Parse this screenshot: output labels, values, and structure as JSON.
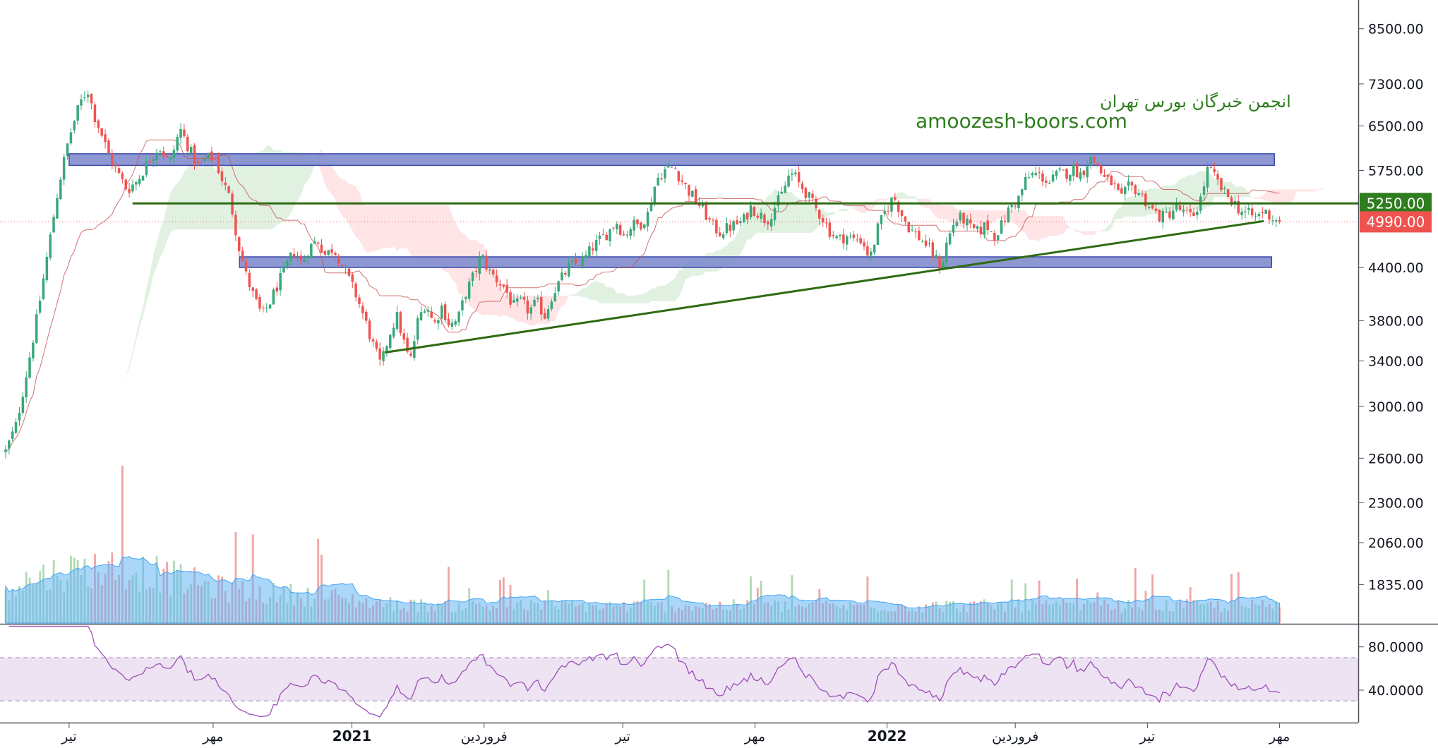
{
  "watermark": {
    "line1": "انجمن خبرگان بورس تهران",
    "line2": "amoozesh-boors.com",
    "color": "#2e7d1e"
  },
  "colors": {
    "up": "#26a69a",
    "up_candle": "#3aa87a",
    "down": "#ef5350",
    "zone_fill": "#7986cb",
    "zone_stroke": "#3949ab",
    "level_line": "#2e6b12",
    "trendline": "#2e6b12",
    "rsi_line": "#9c4fb8",
    "rsi_band": "#e9dcf0",
    "volume_ma": "#64b5f6",
    "last_price_tag": "#ef5350",
    "level_tag": "#2e7d1e"
  },
  "chart_data": {
    "type": "candlestick",
    "price_axis": {
      "scale": "log",
      "ticks": [
        8500,
        7300,
        6500,
        5750,
        4400,
        3800,
        3400,
        3000,
        2600,
        2300,
        2060,
        1835
      ],
      "tick_labels": [
        "8500.00",
        "7300.00",
        "6500.00",
        "5750.00",
        "4400.00",
        "3800.00",
        "3400.00",
        "3000.00",
        "2600.00",
        "2300.00",
        "2060.00",
        "1835.00"
      ],
      "ylim": [
        1650,
        9200
      ]
    },
    "time_axis": {
      "range": [
        0,
        1000
      ],
      "ticks": [
        {
          "label": "تیر",
          "t": 48,
          "bold": false
        },
        {
          "label": "مهر",
          "t": 157,
          "bold": false
        },
        {
          "label": "2021",
          "t": 262,
          "bold": true
        },
        {
          "label": "فروردین",
          "t": 362,
          "bold": false
        },
        {
          "label": "تیر",
          "t": 467,
          "bold": false
        },
        {
          "label": "مهر",
          "t": 567,
          "bold": false
        },
        {
          "label": "2022",
          "t": 667,
          "bold": true
        },
        {
          "label": "فروردین",
          "t": 764,
          "bold": false
        },
        {
          "label": "تیر",
          "t": 864,
          "bold": false
        },
        {
          "label": "مهر",
          "t": 964,
          "bold": false
        }
      ]
    },
    "price_keypoints": [
      [
        0,
        2650
      ],
      [
        8,
        2850
      ],
      [
        16,
        3300
      ],
      [
        24,
        3850
      ],
      [
        32,
        4600
      ],
      [
        40,
        5500
      ],
      [
        48,
        6300
      ],
      [
        56,
        6900
      ],
      [
        62,
        7200
      ],
      [
        67,
        6700
      ],
      [
        72,
        6400
      ],
      [
        78,
        6000
      ],
      [
        85,
        5700
      ],
      [
        92,
        5450
      ],
      [
        100,
        5600
      ],
      [
        108,
        5900
      ],
      [
        116,
        6150
      ],
      [
        124,
        5850
      ],
      [
        132,
        6450
      ],
      [
        140,
        6050
      ],
      [
        146,
        5800
      ],
      [
        152,
        5950
      ],
      [
        158,
        5950
      ],
      [
        164,
        5600
      ],
      [
        170,
        5300
      ],
      [
        176,
        4700
      ],
      [
        182,
        4300
      ],
      [
        188,
        4050
      ],
      [
        194,
        3850
      ],
      [
        200,
        4000
      ],
      [
        206,
        4200
      ],
      [
        212,
        4400
      ],
      [
        218,
        4600
      ],
      [
        224,
        4450
      ],
      [
        230,
        4650
      ],
      [
        236,
        4750
      ],
      [
        242,
        4550
      ],
      [
        248,
        4650
      ],
      [
        254,
        4450
      ],
      [
        260,
        4250
      ],
      [
        266,
        4050
      ],
      [
        272,
        3800
      ],
      [
        278,
        3550
      ],
      [
        284,
        3350
      ],
      [
        290,
        3650
      ],
      [
        296,
        3850
      ],
      [
        302,
        3550
      ],
      [
        306,
        3380
      ],
      [
        312,
        3800
      ],
      [
        318,
        4000
      ],
      [
        324,
        3750
      ],
      [
        330,
        3950
      ],
      [
        336,
        3750
      ],
      [
        342,
        3800
      ],
      [
        348,
        4100
      ],
      [
        354,
        4300
      ],
      [
        360,
        4550
      ],
      [
        366,
        4350
      ],
      [
        372,
        4250
      ],
      [
        378,
        4150
      ],
      [
        384,
        3950
      ],
      [
        390,
        4000
      ],
      [
        396,
        3900
      ],
      [
        402,
        4000
      ],
      [
        408,
        3850
      ],
      [
        414,
        4100
      ],
      [
        420,
        4250
      ],
      [
        426,
        4400
      ],
      [
        432,
        4450
      ],
      [
        438,
        4500
      ],
      [
        444,
        4650
      ],
      [
        450,
        4750
      ],
      [
        456,
        4850
      ],
      [
        462,
        5000
      ],
      [
        468,
        4800
      ],
      [
        474,
        4950
      ],
      [
        480,
        4950
      ],
      [
        486,
        5100
      ],
      [
        490,
        5450
      ],
      [
        494,
        5650
      ],
      [
        500,
        5780
      ],
      [
        506,
        5800
      ],
      [
        510,
        5650
      ],
      [
        516,
        5450
      ],
      [
        522,
        5300
      ],
      [
        528,
        5150
      ],
      [
        534,
        4950
      ],
      [
        540,
        4850
      ],
      [
        546,
        4900
      ],
      [
        552,
        4950
      ],
      [
        558,
        5000
      ],
      [
        564,
        5200
      ],
      [
        570,
        5100
      ],
      [
        576,
        5000
      ],
      [
        582,
        5200
      ],
      [
        588,
        5400
      ],
      [
        592,
        5650
      ],
      [
        596,
        5700
      ],
      [
        600,
        5550
      ],
      [
        606,
        5400
      ],
      [
        612,
        5200
      ],
      [
        618,
        5050
      ],
      [
        624,
        4850
      ],
      [
        630,
        4750
      ],
      [
        636,
        4800
      ],
      [
        642,
        4750
      ],
      [
        648,
        4750
      ],
      [
        654,
        4500
      ],
      [
        660,
        4900
      ],
      [
        666,
        5150
      ],
      [
        672,
        5350
      ],
      [
        678,
        5100
      ],
      [
        684,
        4900
      ],
      [
        690,
        4800
      ],
      [
        696,
        4700
      ],
      [
        702,
        4550
      ],
      [
        708,
        4400
      ],
      [
        712,
        4700
      ],
      [
        718,
        5000
      ],
      [
        724,
        5050
      ],
      [
        730,
        4900
      ],
      [
        736,
        4850
      ],
      [
        742,
        4950
      ],
      [
        748,
        4800
      ],
      [
        754,
        4950
      ],
      [
        760,
        5200
      ],
      [
        766,
        5300
      ],
      [
        772,
        5600
      ],
      [
        778,
        5700
      ],
      [
        784,
        5650
      ],
      [
        790,
        5550
      ],
      [
        796,
        5700
      ],
      [
        802,
        5700
      ],
      [
        808,
        5780
      ],
      [
        814,
        5680
      ],
      [
        820,
        5950
      ],
      [
        826,
        5850
      ],
      [
        832,
        5600
      ],
      [
        838,
        5550
      ],
      [
        844,
        5300
      ],
      [
        850,
        5500
      ],
      [
        856,
        5450
      ],
      [
        862,
        5300
      ],
      [
        868,
        5150
      ],
      [
        874,
        5050
      ],
      [
        880,
        5100
      ],
      [
        886,
        5200
      ],
      [
        892,
        5100
      ],
      [
        898,
        5050
      ],
      [
        904,
        5300
      ],
      [
        910,
        5800
      ],
      [
        916,
        5600
      ],
      [
        922,
        5400
      ],
      [
        928,
        5300
      ],
      [
        934,
        5150
      ],
      [
        940,
        5100
      ],
      [
        946,
        5050
      ],
      [
        952,
        5150
      ],
      [
        958,
        5050
      ],
      [
        964,
        4990
      ]
    ],
    "last_candle_t": 964,
    "levels": [
      {
        "price": 5250,
        "label": "5250.00",
        "t_start": 96,
        "t_end": 1000
      },
      {
        "price": 4990,
        "label": "4990.00",
        "kind": "last_price",
        "dotted": true
      }
    ],
    "zones": [
      {
        "price_low": 5830,
        "price_high": 6020,
        "t_start": 48,
        "t_end": 960
      },
      {
        "price_low": 4400,
        "price_high": 4530,
        "t_start": 177,
        "t_end": 958
      }
    ],
    "trendline": {
      "t_start": 287,
      "price_start": 3480,
      "t_end": 952,
      "price_end": 5000
    },
    "rsi": {
      "axis_ticks": [
        80,
        40
      ],
      "axis_labels": [
        "80.0000",
        "40.0000"
      ],
      "band": [
        30,
        70
      ],
      "ylim": [
        10,
        100
      ]
    }
  }
}
